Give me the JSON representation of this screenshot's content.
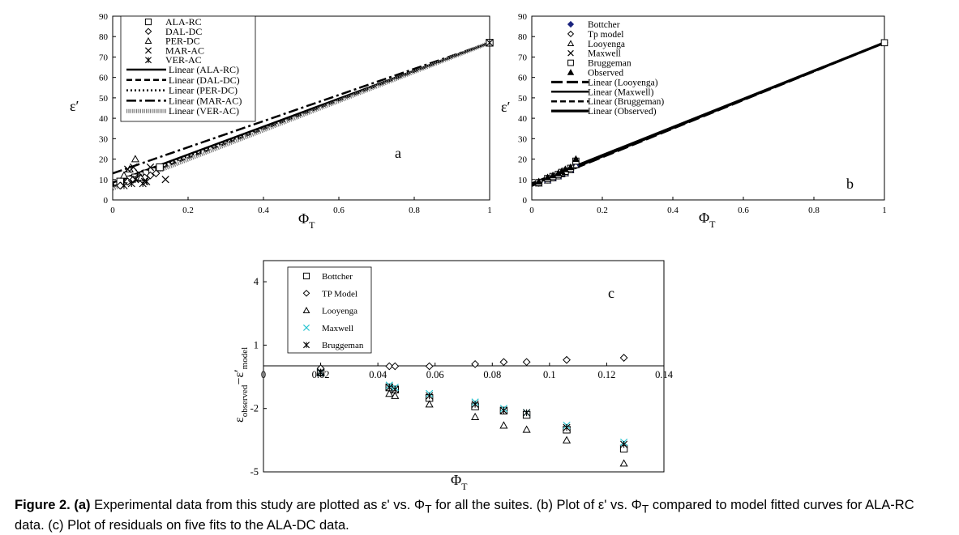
{
  "panel_a": {
    "label": "a",
    "ylabel": "ε′",
    "xlabel": "Φ",
    "xlabel_sub": "T",
    "legend": {
      "markers": [
        "ALA-RC",
        "DAL-DC",
        "PER-DC",
        "MAR-AC",
        "VER-AC"
      ],
      "lines": [
        "Linear (ALA-RC)",
        "Linear (DAL-DC)",
        "Linear (PER-DC)",
        "Linear (MAR-AC)",
        "Linear (VER-AC)"
      ]
    },
    "xticks": [
      "0",
      "0.2",
      "0.4",
      "0.6",
      "0.8",
      "1"
    ],
    "yticks": [
      "0",
      "10",
      "20",
      "30",
      "40",
      "50",
      "60",
      "70",
      "80",
      "90"
    ]
  },
  "panel_b": {
    "label": "b",
    "ylabel": "ε′",
    "xlabel": "Φ",
    "xlabel_sub": "T",
    "legend": [
      "Bottcher",
      "Tp model",
      "Looyenga",
      "Maxwell",
      "Bruggeman",
      "Observed",
      "Linear (Looyenga)",
      "Linear (Maxwell)",
      "Linear (Bruggeman)",
      "Linear (Observed)"
    ],
    "xticks": [
      "0",
      "0.2",
      "0.4",
      "0.6",
      "0.8",
      "1"
    ],
    "yticks": [
      "0",
      "10",
      "20",
      "30",
      "40",
      "50",
      "60",
      "70",
      "80",
      "90"
    ]
  },
  "panel_c": {
    "label": "c",
    "ylabel_main": "ε",
    "ylabel_sub1": "observed",
    "ylabel_mid": "−ε′",
    "ylabel_sub2": "model",
    "xlabel": "Φ",
    "xlabel_sub": "T",
    "legend": [
      "Bottcher",
      "TP Model",
      "Looyenga",
      "Maxwell",
      "Bruggeman"
    ],
    "xticks": [
      "0",
      "0.02",
      "0.04",
      "0.06",
      "0.08",
      "0.1",
      "0.12",
      "0.14"
    ],
    "yticks": [
      "4",
      "1",
      "-2",
      "-5"
    ]
  },
  "caption": {
    "fig_label": "Figure 2.",
    "a_label": "(a)",
    "text_a": "Experimental data from this study are plotted as ε' vs. Φ",
    "sub1": "T",
    "text_b": "for all the suites. (b) Plot of ε' vs. Φ",
    "sub2": "T",
    "text_c": "compared to model fitted curves for ALA-RC data. (c) Plot of residuals on five fits to the ALA-DC data."
  },
  "chart_data": [
    {
      "type": "scatter",
      "title": "a",
      "xlabel": "ΦT",
      "ylabel": "ε′",
      "xlim": [
        0,
        1
      ],
      "ylim": [
        0,
        90
      ],
      "series": [
        {
          "name": "ALA-RC",
          "marker": "square",
          "x": [
            0.02,
            0.045,
            0.06,
            0.075,
            0.09,
            0.105,
            0.125,
            1.0
          ],
          "y": [
            9,
            10,
            11,
            12,
            13,
            14,
            16,
            77
          ]
        },
        {
          "name": "DAL-DC",
          "marker": "diamond",
          "x": [
            0.02,
            0.04,
            0.055,
            0.07,
            0.085,
            0.1,
            0.115
          ],
          "y": [
            7,
            9,
            10,
            10.5,
            11,
            12,
            13
          ]
        },
        {
          "name": "PER-DC",
          "marker": "triangle",
          "x": [
            0.03,
            0.045,
            0.06,
            0.075
          ],
          "y": [
            12,
            15,
            20,
            11
          ]
        },
        {
          "name": "MAR-AC",
          "marker": "x",
          "x": [
            0.04,
            0.055,
            0.07,
            0.085,
            0.1,
            0.14
          ],
          "y": [
            15,
            16,
            13,
            9,
            16,
            10
          ]
        },
        {
          "name": "VER-AC",
          "marker": "star",
          "x": [
            0.03,
            0.05,
            0.06,
            0.08,
            0.09,
            1.0
          ],
          "y": [
            7,
            8,
            10,
            8,
            9,
            77
          ]
        }
      ],
      "fits": [
        {
          "name": "Linear (ALA-RC)",
          "style": "solid",
          "x": [
            0,
            1
          ],
          "y": [
            8.5,
            77
          ]
        },
        {
          "name": "Linear (DAL-DC)",
          "style": "dashed",
          "x": [
            0,
            1
          ],
          "y": [
            6.5,
            77
          ]
        },
        {
          "name": "Linear (PER-DC)",
          "style": "dotted",
          "x": [
            0,
            1
          ],
          "y": [
            7.5,
            77
          ]
        },
        {
          "name": "Linear (MAR-AC)",
          "style": "dashdot",
          "x": [
            0,
            1
          ],
          "y": [
            13,
            77
          ]
        },
        {
          "name": "Linear (VER-AC)",
          "style": "hatched",
          "x": [
            0,
            1
          ],
          "y": [
            5.5,
            77
          ]
        }
      ]
    },
    {
      "type": "scatter",
      "title": "b",
      "xlabel": "ΦT",
      "ylabel": "ε′",
      "xlim": [
        0,
        1
      ],
      "ylim": [
        0,
        90
      ],
      "series": [
        {
          "name": "Bottcher",
          "marker": "filled-diamond",
          "x": [
            0.02,
            0.045,
            0.06,
            0.075,
            0.085,
            0.095,
            0.11,
            0.125,
            1.0
          ],
          "y": [
            8.5,
            10,
            11,
            12,
            13,
            13.5,
            15,
            18,
            77
          ]
        },
        {
          "name": "Tp model",
          "marker": "diamond",
          "x": [
            0.02,
            0.045,
            0.06,
            0.075,
            0.085,
            0.095,
            0.11,
            0.125,
            1.0
          ],
          "y": [
            8.2,
            9.8,
            10.8,
            11.8,
            12.8,
            13.5,
            15,
            17.5,
            77
          ]
        },
        {
          "name": "Looyenga",
          "marker": "triangle",
          "x": [
            0.02,
            0.045,
            0.06,
            0.075,
            0.085,
            0.095,
            0.11,
            0.125
          ],
          "y": [
            8,
            9.5,
            10.5,
            11.5,
            12.5,
            13,
            14.5,
            17
          ]
        },
        {
          "name": "Maxwell",
          "marker": "x",
          "x": [
            0.02,
            0.045,
            0.06,
            0.075,
            0.085,
            0.095,
            0.11,
            0.125,
            1.0
          ],
          "y": [
            8.5,
            10,
            11,
            12,
            13,
            13.5,
            15,
            18,
            77
          ]
        },
        {
          "name": "Bruggeman",
          "marker": "square",
          "x": [
            0.02,
            0.045,
            0.06,
            0.075,
            0.085,
            0.095,
            0.11,
            0.125,
            1.0
          ],
          "y": [
            8.5,
            10.5,
            11.5,
            12.5,
            13.5,
            14,
            15.5,
            19,
            77
          ]
        },
        {
          "name": "Observed",
          "marker": "filled-triangle",
          "x": [
            0.02,
            0.045,
            0.06,
            0.075,
            0.085,
            0.095,
            0.11,
            0.125
          ],
          "y": [
            9,
            11,
            12,
            13,
            14,
            15,
            16,
            20
          ]
        }
      ],
      "fits": [
        {
          "name": "Linear (Looyenga)",
          "style": "longdash",
          "x": [
            0,
            1
          ],
          "y": [
            7,
            77
          ]
        },
        {
          "name": "Linear (Maxwell)",
          "style": "solid",
          "x": [
            0,
            1
          ],
          "y": [
            7.3,
            77
          ]
        },
        {
          "name": "Linear (Bruggeman)",
          "style": "dashed",
          "x": [
            0,
            1
          ],
          "y": [
            7.6,
            77
          ]
        },
        {
          "name": "Linear (Observed)",
          "style": "solid-thick",
          "x": [
            0,
            1
          ],
          "y": [
            8,
            77
          ]
        }
      ]
    },
    {
      "type": "scatter",
      "title": "c",
      "xlabel": "ΦT",
      "ylabel": "ε observed − ε′ model",
      "xlim": [
        0,
        0.14
      ],
      "ylim": [
        -5,
        5
      ],
      "series": [
        {
          "name": "Bottcher",
          "marker": "square",
          "x": [
            0.02,
            0.044,
            0.046,
            0.058,
            0.074,
            0.084,
            0.092,
            0.106,
            0.126
          ],
          "y": [
            -0.3,
            -1.0,
            -1.1,
            -1.5,
            -1.9,
            -2.1,
            -2.3,
            -3.0,
            -3.9
          ]
        },
        {
          "name": "TP Model",
          "marker": "diamond",
          "x": [
            0.02,
            0.044,
            0.046,
            0.058,
            0.074,
            0.084,
            0.092,
            0.106,
            0.126
          ],
          "y": [
            -0.1,
            0.0,
            0.0,
            0.0,
            0.1,
            0.2,
            0.2,
            0.3,
            0.4
          ]
        },
        {
          "name": "Looyenga",
          "marker": "triangle",
          "x": [
            0.02,
            0.044,
            0.046,
            0.058,
            0.074,
            0.084,
            0.092,
            0.106,
            0.126
          ],
          "y": [
            -0.3,
            -1.3,
            -1.4,
            -1.8,
            -2.4,
            -2.8,
            -3.0,
            -3.5,
            -4.6
          ]
        },
        {
          "name": "Maxwell",
          "marker": "x",
          "x": [
            0.02,
            0.044,
            0.046,
            0.058,
            0.074,
            0.084,
            0.092,
            0.106,
            0.126
          ],
          "y": [
            -0.3,
            -0.9,
            -1.0,
            -1.3,
            -1.7,
            -2.0,
            -2.2,
            -2.8,
            -3.6
          ]
        },
        {
          "name": "Bruggeman",
          "marker": "star",
          "x": [
            0.02,
            0.044,
            0.046,
            0.058,
            0.074,
            0.084,
            0.092,
            0.106,
            0.126
          ],
          "y": [
            -0.3,
            -1.0,
            -1.1,
            -1.4,
            -1.8,
            -2.1,
            -2.2,
            -2.9,
            -3.7
          ]
        }
      ]
    }
  ]
}
